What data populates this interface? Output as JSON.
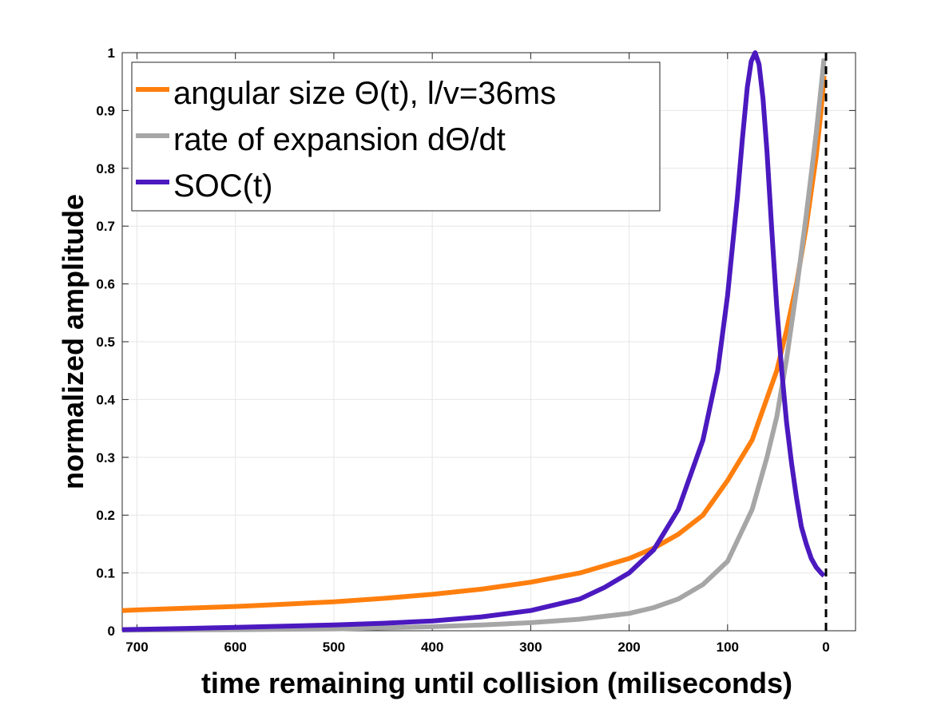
{
  "chart_data": {
    "type": "line",
    "title": "",
    "xlabel": "time remaining until collision (miliseconds)",
    "ylabel": "normalized amplitude",
    "xlim": [
      715,
      -30
    ],
    "ylim": [
      0,
      1
    ],
    "x_direction": "reversed",
    "grid": true,
    "legend_position": "top-left",
    "x_ticks": [
      700,
      600,
      500,
      400,
      300,
      200,
      100,
      0
    ],
    "y_ticks": [
      0,
      0.1,
      0.2,
      0.3,
      0.4,
      0.5,
      0.6,
      0.7,
      0.8,
      0.9,
      1
    ],
    "x_tick_labels": [
      "700",
      "600",
      "500",
      "400",
      "300",
      "200",
      "100",
      "0"
    ],
    "y_tick_labels": [
      "0",
      "0.1",
      "0.2",
      "0.3",
      "0.4",
      "0.5",
      "0.6",
      "0.7",
      "0.8",
      "0.9",
      "1"
    ],
    "annotations": [
      {
        "type": "vertical-dashed-line",
        "x": 0,
        "color": "#000000"
      }
    ],
    "series": [
      {
        "name": "angular size Θ(t), l/v=36ms",
        "color": "#ff7f0e",
        "x": [
          715,
          700,
          650,
          600,
          550,
          500,
          450,
          400,
          350,
          300,
          250,
          200,
          175,
          150,
          125,
          100,
          75,
          50,
          40,
          30,
          20,
          10,
          5,
          2
        ],
        "y": [
          0.035,
          0.036,
          0.039,
          0.042,
          0.046,
          0.05,
          0.056,
          0.063,
          0.072,
          0.084,
          0.1,
          0.125,
          0.143,
          0.167,
          0.2,
          0.26,
          0.33,
          0.45,
          0.52,
          0.6,
          0.7,
          0.82,
          0.9,
          0.96
        ]
      },
      {
        "name": "rate of expansion dΘ/dt",
        "color": "#a6a6a6",
        "x": [
          715,
          600,
          500,
          400,
          350,
          300,
          250,
          200,
          175,
          150,
          125,
          100,
          75,
          60,
          50,
          40,
          30,
          20,
          10,
          5,
          2
        ],
        "y": [
          0.001,
          0.002,
          0.003,
          0.007,
          0.01,
          0.014,
          0.02,
          0.03,
          0.04,
          0.055,
          0.08,
          0.12,
          0.21,
          0.3,
          0.37,
          0.47,
          0.59,
          0.72,
          0.86,
          0.94,
          0.99
        ]
      },
      {
        "name": "SOC(t)",
        "color": "#4b19bf",
        "x": [
          715,
          650,
          600,
          550,
          500,
          450,
          400,
          350,
          300,
          250,
          225,
          200,
          175,
          150,
          125,
          110,
          100,
          90,
          85,
          80,
          76,
          72,
          68,
          64,
          60,
          55,
          50,
          45,
          40,
          35,
          30,
          25,
          20,
          15,
          10,
          5,
          2
        ],
        "y": [
          0.002,
          0.004,
          0.006,
          0.008,
          0.01,
          0.013,
          0.017,
          0.024,
          0.035,
          0.055,
          0.075,
          0.1,
          0.14,
          0.21,
          0.33,
          0.45,
          0.58,
          0.75,
          0.85,
          0.94,
          0.985,
          1.0,
          0.98,
          0.92,
          0.83,
          0.69,
          0.56,
          0.45,
          0.36,
          0.29,
          0.23,
          0.18,
          0.15,
          0.125,
          0.11,
          0.1,
          0.095
        ]
      }
    ]
  }
}
